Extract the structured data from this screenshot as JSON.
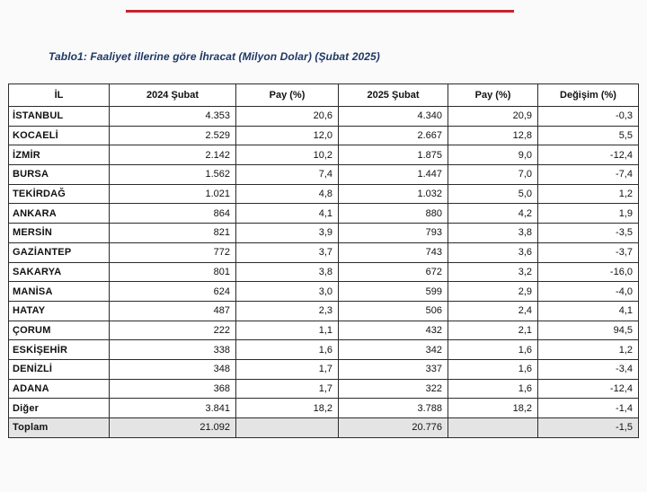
{
  "caption": "Tablo1: Faaliyet illerine göre İhracat (Milyon Dolar) (Şubat 2025)",
  "colors": {
    "accent_rule": "#c8232c",
    "caption": "#1f3864",
    "total_row_bg": "#e4e4e4"
  },
  "table": {
    "headers": [
      "İL",
      "2024 Şubat",
      "Pay  (%)",
      "2025 Şubat",
      "Pay  (%)",
      "Değişim (%)"
    ],
    "rows": [
      [
        "İSTANBUL",
        "4.353",
        "20,6",
        "4.340",
        "20,9",
        "-0,3"
      ],
      [
        "KOCAELİ",
        "2.529",
        "12,0",
        "2.667",
        "12,8",
        "5,5"
      ],
      [
        "İZMİR",
        "2.142",
        "10,2",
        "1.875",
        "9,0",
        "-12,4"
      ],
      [
        "BURSA",
        "1.562",
        "7,4",
        "1.447",
        "7,0",
        "-7,4"
      ],
      [
        "TEKİRDAĞ",
        "1.021",
        "4,8",
        "1.032",
        "5,0",
        "1,2"
      ],
      [
        "ANKARA",
        "864",
        "4,1",
        "880",
        "4,2",
        "1,9"
      ],
      [
        "MERSİN",
        "821",
        "3,9",
        "793",
        "3,8",
        "-3,5"
      ],
      [
        "GAZİANTEP",
        "772",
        "3,7",
        "743",
        "3,6",
        "-3,7"
      ],
      [
        "SAKARYA",
        "801",
        "3,8",
        "672",
        "3,2",
        "-16,0"
      ],
      [
        "MANİSA",
        "624",
        "3,0",
        "599",
        "2,9",
        "-4,0"
      ],
      [
        "HATAY",
        "487",
        "2,3",
        "506",
        "2,4",
        "4,1"
      ],
      [
        "ÇORUM",
        "222",
        "1,1",
        "432",
        "2,1",
        "94,5"
      ],
      [
        "ESKİŞEHİR",
        "338",
        "1,6",
        "342",
        "1,6",
        "1,2"
      ],
      [
        "DENİZLİ",
        "348",
        "1,7",
        "337",
        "1,6",
        "-3,4"
      ],
      [
        "ADANA",
        "368",
        "1,7",
        "322",
        "1,6",
        "-12,4"
      ],
      [
        "Diğer",
        "3.841",
        "18,2",
        "3.788",
        "18,2",
        "-1,4"
      ]
    ],
    "total": [
      "Toplam",
      "21.092",
      "",
      "20.776",
      "",
      "-1,5"
    ]
  }
}
